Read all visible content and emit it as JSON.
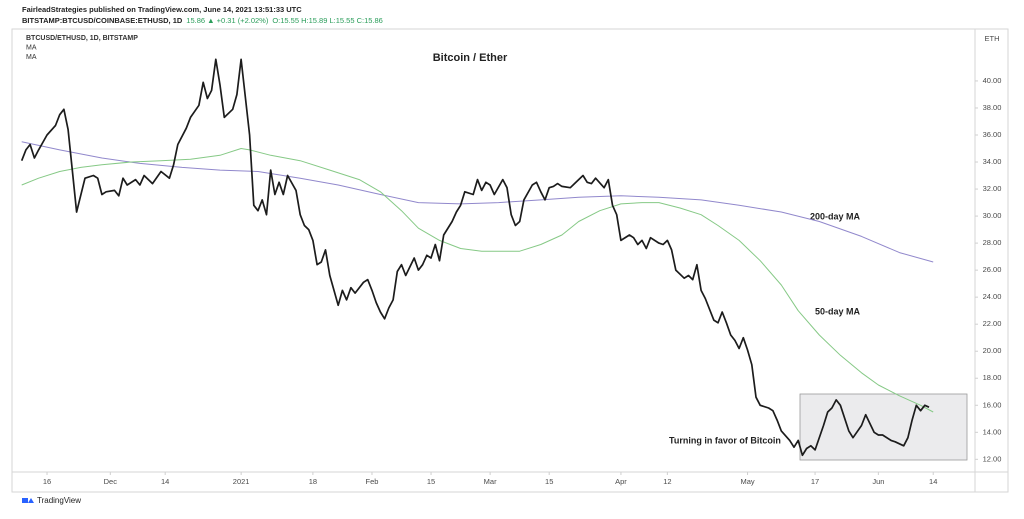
{
  "chart_data": {
    "type": "line",
    "source": "FairleadStrategies published on TradingView.com, June 14, 2021 13:51:33 UTC",
    "symbol": "BITSTAMP:BTCUSD/COINBASE:ETHUSD, 1D",
    "quote": "15.86 ▲ +0.31 (+2.02%)",
    "ohlc": "O:15.55 H:15.89 L:15.55 C:15.86",
    "title": "Bitcoin / Ether",
    "y_axis_unit": "ETH",
    "annotations": [
      "200-day MA",
      "50-day MA",
      "Turning in favor of Bitcoin"
    ],
    "footer": "TradingView",
    "xlim": [
      -8.3,
      219.9
    ],
    "xticks": [
      {
        "value": 0,
        "label": "16"
      },
      {
        "value": 15,
        "label": "Dec"
      },
      {
        "value": 28,
        "label": "14"
      },
      {
        "value": 46,
        "label": "2021"
      },
      {
        "value": 63,
        "label": "18"
      },
      {
        "value": 77,
        "label": "Feb"
      },
      {
        "value": 91,
        "label": "15"
      },
      {
        "value": 105,
        "label": "Mar"
      },
      {
        "value": 119,
        "label": "15"
      },
      {
        "value": 136,
        "label": "Apr"
      },
      {
        "value": 147,
        "label": "12"
      },
      {
        "value": 166,
        "label": "May"
      },
      {
        "value": 182,
        "label": "17"
      },
      {
        "value": 197,
        "label": "Jun"
      },
      {
        "value": 210,
        "label": "14"
      }
    ],
    "ylim": [
      10.1,
      43.4
    ],
    "yticks": [
      {
        "value": 12,
        "label": "12.00"
      },
      {
        "value": 14,
        "label": "14.00"
      },
      {
        "value": 16,
        "label": "16.00"
      },
      {
        "value": 18,
        "label": "18.00"
      },
      {
        "value": 20,
        "label": "20.00"
      },
      {
        "value": 22,
        "label": "22.00"
      },
      {
        "value": 24,
        "label": "24.00"
      },
      {
        "value": 26,
        "label": "26.00"
      },
      {
        "value": 28,
        "label": "28.00"
      },
      {
        "value": 30,
        "label": "30.00"
      },
      {
        "value": 32,
        "label": "32.00"
      },
      {
        "value": 34,
        "label": "34.00"
      },
      {
        "value": 36,
        "label": "36.00"
      },
      {
        "value": 38,
        "label": "38.00"
      },
      {
        "value": 40,
        "label": "40.00"
      }
    ],
    "grid": false,
    "series": [
      {
        "name": "BTCUSD/ETHUSD, 1D, BITSTAMP",
        "color": "#1c1c1c",
        "x": [
          -6,
          -5,
          -4,
          -3,
          -2,
          0,
          2,
          3,
          4,
          5,
          6,
          7,
          9,
          11,
          12,
          13,
          14,
          16,
          17,
          18,
          19,
          21,
          22,
          23,
          25,
          27,
          29,
          30,
          31,
          33,
          34,
          36,
          37,
          38,
          39,
          40,
          41,
          42,
          44,
          45,
          46,
          48,
          49,
          50,
          51,
          52,
          53,
          54,
          55,
          56,
          57,
          59,
          60,
          61,
          62,
          63,
          64,
          65,
          66,
          67,
          68,
          69,
          70,
          71,
          72,
          73,
          75,
          76,
          77,
          78,
          79,
          80,
          81,
          82,
          83,
          84,
          85,
          87,
          88,
          89,
          90,
          91,
          92,
          93,
          94,
          96,
          97,
          98,
          99,
          101,
          102,
          103,
          104,
          105,
          106,
          108,
          109,
          110,
          111,
          112,
          113,
          115,
          116,
          117,
          118,
          119,
          120,
          121,
          122,
          124,
          125,
          127,
          128,
          129,
          130,
          132,
          133,
          134,
          135,
          136,
          138,
          139,
          140,
          141,
          142,
          143,
          145,
          146,
          147,
          148,
          149,
          151,
          152,
          153,
          154,
          155,
          156,
          158,
          159,
          160,
          161,
          162,
          163,
          164,
          165,
          166,
          167,
          168,
          169,
          171,
          172,
          173,
          174,
          176,
          177,
          178,
          179,
          180,
          181,
          182,
          184,
          185,
          186,
          187,
          188,
          190,
          191,
          193,
          194,
          196,
          197,
          198,
          200,
          201,
          203,
          204,
          205,
          206,
          207,
          208,
          209
        ],
        "values": [
          34.1,
          34.9,
          35.3,
          34.3,
          34.9,
          36.0,
          36.7,
          37.5,
          37.9,
          36.4,
          33.4,
          30.3,
          32.8,
          33.0,
          32.8,
          31.6,
          31.8,
          31.9,
          31.5,
          32.8,
          32.3,
          32.7,
          32.3,
          33.0,
          32.4,
          33.3,
          32.8,
          33.8,
          35.3,
          36.5,
          37.3,
          38.2,
          39.9,
          38.7,
          39.3,
          41.6,
          39.7,
          37.3,
          37.9,
          39.0,
          41.6,
          36.0,
          30.8,
          30.4,
          31.2,
          30.1,
          33.4,
          31.6,
          32.5,
          31.6,
          33.0,
          31.9,
          30.1,
          29.3,
          29.0,
          28.2,
          26.4,
          26.6,
          27.5,
          25.6,
          24.5,
          23.4,
          24.5,
          23.8,
          24.7,
          24.3,
          25.1,
          25.3,
          24.5,
          23.6,
          22.9,
          22.4,
          23.2,
          23.8,
          25.9,
          26.4,
          25.6,
          26.9,
          26.0,
          26.4,
          27.1,
          26.9,
          27.9,
          26.7,
          28.6,
          29.6,
          30.3,
          30.8,
          31.8,
          31.6,
          32.7,
          31.9,
          32.5,
          32.3,
          31.6,
          32.7,
          32.1,
          30.1,
          29.3,
          29.6,
          31.2,
          32.3,
          32.5,
          31.8,
          31.2,
          32.1,
          32.2,
          32.4,
          32.2,
          32.1,
          32.4,
          33.0,
          32.5,
          32.4,
          32.8,
          32.1,
          32.7,
          30.8,
          30.1,
          28.2,
          28.6,
          28.4,
          27.9,
          28.2,
          27.6,
          28.4,
          28.0,
          27.9,
          28.2,
          27.5,
          26.0,
          25.4,
          25.6,
          25.3,
          26.4,
          24.5,
          23.9,
          22.3,
          22.1,
          22.9,
          22.1,
          21.2,
          20.8,
          20.2,
          21.0,
          20.1,
          19.0,
          16.6,
          16.0,
          15.8,
          15.6,
          14.9,
          14.1,
          13.4,
          12.9,
          13.4,
          12.3,
          12.8,
          13.0,
          12.7,
          14.5,
          15.5,
          15.8,
          16.4,
          16.0,
          14.1,
          13.6,
          14.5,
          15.3,
          14.0,
          13.8,
          13.8,
          13.4,
          13.3,
          13.0,
          13.6,
          14.9,
          16.0,
          15.6,
          16.0,
          15.86
        ]
      },
      {
        "name": "MA",
        "color": "#86c986",
        "x": [
          -6,
          -2,
          3,
          8,
          13,
          20,
          27,
          34,
          41,
          46,
          48,
          53,
          60,
          67,
          74,
          79,
          84,
          88,
          93,
          98,
          103,
          107,
          112,
          117,
          122,
          126,
          131,
          136,
          141,
          145,
          150,
          155,
          159,
          164,
          169,
          174,
          178,
          183,
          188,
          193,
          197,
          202,
          207,
          210
        ],
        "values": [
          32.3,
          32.8,
          33.3,
          33.6,
          33.8,
          34.0,
          34.1,
          34.2,
          34.5,
          35.0,
          34.9,
          34.5,
          34.1,
          33.4,
          32.7,
          31.8,
          30.4,
          29.1,
          28.2,
          27.6,
          27.4,
          27.4,
          27.4,
          27.9,
          28.6,
          29.6,
          30.4,
          30.9,
          31.0,
          31.0,
          30.6,
          30.1,
          29.3,
          28.2,
          26.7,
          24.9,
          23.0,
          21.2,
          19.7,
          18.4,
          17.5,
          16.7,
          16.0,
          15.5
        ]
      },
      {
        "name": "MA",
        "color": "#9188cc",
        "x": [
          -6,
          3,
          13,
          22,
          32,
          41,
          50,
          60,
          69,
          79,
          88,
          98,
          107,
          117,
          126,
          136,
          145,
          155,
          164,
          174,
          183,
          193,
          202,
          210
        ],
        "values": [
          35.5,
          34.9,
          34.3,
          33.9,
          33.6,
          33.4,
          33.3,
          32.8,
          32.3,
          31.6,
          31.0,
          30.9,
          31.0,
          31.2,
          31.4,
          31.5,
          31.4,
          31.2,
          30.8,
          30.3,
          29.6,
          28.5,
          27.3,
          26.6
        ]
      }
    ]
  }
}
